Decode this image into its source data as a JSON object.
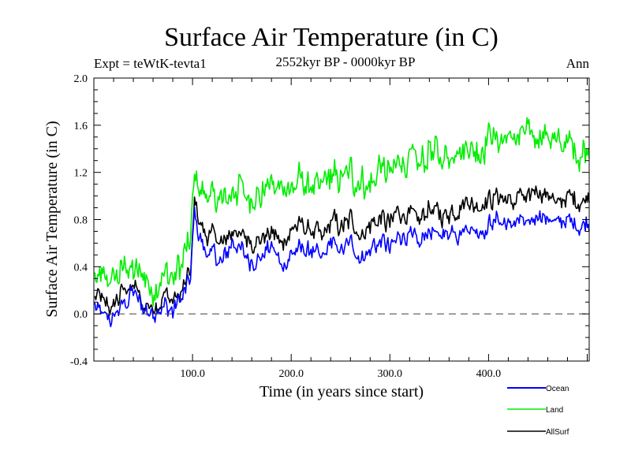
{
  "chart_data": {
    "type": "line",
    "title": "Surface Air Temperature (in C)",
    "subtitle": "2552kyr BP - 0000kyr BP",
    "left_label": "Expt = teWtK-tevta1",
    "right_label": "Ann",
    "xlabel": "Time (in years since start)",
    "ylabel": "Surface Air Temperature (in C)",
    "xlim": [
      0,
      502
    ],
    "ylim": [
      -0.4,
      2.0
    ],
    "xticks": [
      100,
      200,
      300,
      400
    ],
    "xtick_labels": [
      "100.0",
      "200.0",
      "300.0",
      "400.0"
    ],
    "yticks": [
      -0.4,
      0.0,
      0.4,
      0.8,
      1.2,
      1.6,
      2.0
    ],
    "ytick_labels": [
      "-0.4",
      "0.0",
      "0.4",
      "0.8",
      "1.2",
      "1.6",
      "2.0"
    ],
    "reference_line": {
      "y": 0.0,
      "style": "dashed",
      "color": "#555555"
    },
    "grid": false,
    "legend_position": "bottom-right (below plot)",
    "x": [
      0,
      10,
      20,
      30,
      40,
      50,
      60,
      70,
      80,
      90,
      98,
      102,
      110,
      120,
      130,
      140,
      150,
      160,
      170,
      180,
      190,
      200,
      210,
      220,
      230,
      240,
      250,
      260,
      270,
      280,
      290,
      300,
      310,
      320,
      330,
      340,
      350,
      360,
      370,
      380,
      390,
      400,
      410,
      420,
      430,
      440,
      450,
      460,
      470,
      480,
      490,
      500
    ],
    "series": [
      {
        "name": "Ocean",
        "color": "#0000ff",
        "values": [
          0.05,
          0.0,
          -0.05,
          0.1,
          0.2,
          0.05,
          0.0,
          0.1,
          0.0,
          0.15,
          0.3,
          0.85,
          0.55,
          0.5,
          0.45,
          0.6,
          0.55,
          0.45,
          0.5,
          0.55,
          0.4,
          0.5,
          0.55,
          0.55,
          0.45,
          0.6,
          0.55,
          0.6,
          0.5,
          0.55,
          0.6,
          0.55,
          0.65,
          0.65,
          0.6,
          0.7,
          0.65,
          0.7,
          0.7,
          0.75,
          0.7,
          0.75,
          0.8,
          0.75,
          0.8,
          0.75,
          0.85,
          0.8,
          0.75,
          0.8,
          0.75,
          0.8
        ]
      },
      {
        "name": "Land",
        "color": "#00ee00",
        "values": [
          0.35,
          0.25,
          0.3,
          0.4,
          0.35,
          0.3,
          0.2,
          0.35,
          0.3,
          0.4,
          0.6,
          1.15,
          1.0,
          0.95,
          0.95,
          1.05,
          1.05,
          0.95,
          1.05,
          1.1,
          1.0,
          1.1,
          1.15,
          1.1,
          1.05,
          1.2,
          1.15,
          1.2,
          1.1,
          1.15,
          1.25,
          1.2,
          1.3,
          1.3,
          1.25,
          1.4,
          1.3,
          1.35,
          1.45,
          1.45,
          1.4,
          1.45,
          1.5,
          1.45,
          1.5,
          1.5,
          1.55,
          1.5,
          1.45,
          1.45,
          1.35,
          1.4
        ]
      },
      {
        "name": "AllSurf",
        "color": "#000000",
        "values": [
          0.15,
          0.1,
          0.05,
          0.2,
          0.25,
          0.1,
          0.05,
          0.15,
          0.1,
          0.2,
          0.35,
          0.95,
          0.7,
          0.65,
          0.6,
          0.7,
          0.7,
          0.6,
          0.65,
          0.7,
          0.6,
          0.7,
          0.75,
          0.7,
          0.65,
          0.8,
          0.75,
          0.8,
          0.7,
          0.75,
          0.8,
          0.75,
          0.85,
          0.85,
          0.8,
          0.9,
          0.85,
          0.85,
          0.9,
          0.95,
          0.9,
          0.95,
          1.0,
          0.95,
          1.0,
          0.95,
          1.05,
          1.0,
          0.95,
          1.0,
          0.95,
          1.0
        ]
      }
    ]
  }
}
